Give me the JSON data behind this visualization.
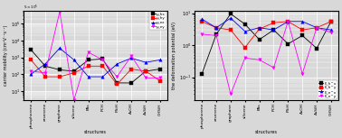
{
  "categories": [
    "phosphorene",
    "arsenene",
    "graphane",
    "silicene",
    "PAs",
    "PCH",
    "PSiH",
    "AsOH",
    "AsSiH",
    "CHSiH"
  ],
  "mobility": {
    "mu_hx": [
      2800,
      300,
      180,
      150,
      700,
      800,
      30,
      30,
      150,
      200
    ],
    "mu_hy": [
      700,
      70,
      70,
      120,
      300,
      300,
      25,
      200,
      150,
      40
    ],
    "mu_ex": [
      100,
      400,
      3500,
      700,
      70,
      70,
      400,
      900,
      500,
      700
    ],
    "mu_ey": [
      150,
      120,
      500000,
      3,
      2000,
      700,
      70,
      1200,
      60,
      60
    ]
  },
  "deformation": {
    "E_hx": [
      0.13,
      2.2,
      9.5,
      4.5,
      1.5,
      3.0,
      1.1,
      2.0,
      0.8,
      5.5
    ],
    "E_hy": [
      5.5,
      3.5,
      3.0,
      0.85,
      3.2,
      5.0,
      5.5,
      3.0,
      3.5,
      5.5
    ],
    "E_ex": [
      6.5,
      3.5,
      7.0,
      2.7,
      3.5,
      3.0,
      5.5,
      5.5,
      3.5,
      3.0
    ],
    "E_ey": [
      2.2,
      2.0,
      0.03,
      0.4,
      0.35,
      0.2,
      5.5,
      0.13,
      3.5,
      2.5
    ]
  },
  "mob_colors": [
    "#000000",
    "#ff0000",
    "#0000ff",
    "#ff00ff"
  ],
  "def_colors": [
    "#000000",
    "#ff0000",
    "#0000ff",
    "#ff00ff"
  ],
  "mob_labels": [
    "μ_hx",
    "μ_hy",
    "μ_ex",
    "μ_ey"
  ],
  "def_labels": [
    "E_h^x",
    "E_h^y",
    "E_e^x",
    "E_e^y"
  ],
  "mob_ylim": [
    3,
    600000
  ],
  "def_ylim": [
    0.02,
    12
  ],
  "mob_yticks": [
    10,
    100,
    1000,
    10000,
    100000
  ],
  "def_yticks": [
    0.1,
    1,
    10
  ],
  "bg_color": "#d8d8d8"
}
